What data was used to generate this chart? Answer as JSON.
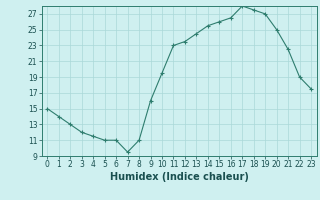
{
  "x": [
    0,
    1,
    2,
    3,
    4,
    5,
    6,
    7,
    8,
    9,
    10,
    11,
    12,
    13,
    14,
    15,
    16,
    17,
    18,
    19,
    20,
    21,
    22,
    23
  ],
  "y": [
    15,
    14,
    13,
    12,
    11.5,
    11,
    11,
    9.5,
    11,
    16,
    19.5,
    23,
    23.5,
    24.5,
    25.5,
    26,
    26.5,
    28,
    27.5,
    27,
    25,
    22.5,
    19,
    17.5
  ],
  "xlabel": "Humidex (Indice chaleur)",
  "xlim": [
    -0.5,
    23.5
  ],
  "ylim": [
    9,
    28
  ],
  "yticks": [
    9,
    11,
    13,
    15,
    17,
    19,
    21,
    23,
    25,
    27
  ],
  "xticks": [
    0,
    1,
    2,
    3,
    4,
    5,
    6,
    7,
    8,
    9,
    10,
    11,
    12,
    13,
    14,
    15,
    16,
    17,
    18,
    19,
    20,
    21,
    22,
    23
  ],
  "line_color": "#2e7d6e",
  "bg_color": "#cff0f0",
  "grid_color": "#aad8d8",
  "tick_label_fontsize": 5.5,
  "xlabel_fontsize": 7.0
}
